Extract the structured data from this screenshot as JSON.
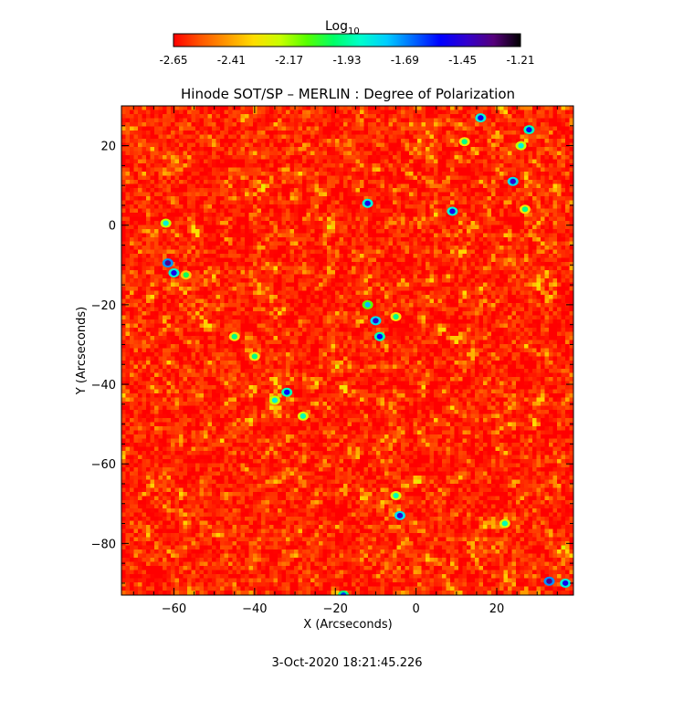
{
  "colorbar": {
    "title_base": "Log",
    "title_sub": "10",
    "ticks": [
      "-2.65",
      "-2.41",
      "-2.17",
      "-1.93",
      "-1.69",
      "-1.45",
      "-1.21"
    ],
    "range": [
      -2.65,
      -1.21
    ],
    "colors": [
      "#ff0000",
      "#ff5500",
      "#ff9900",
      "#ffdd00",
      "#c8ff00",
      "#55ff00",
      "#00ff66",
      "#00ffcc",
      "#00ccff",
      "#0066ff",
      "#0000ff",
      "#3300cc",
      "#55007a",
      "#000000"
    ]
  },
  "chart_data": {
    "type": "heatmap",
    "title": "Hinode SOT/SP – MERLIN : Degree of Polarization",
    "xlabel": "X (Arcseconds)",
    "ylabel": "Y (Arcseconds)",
    "xlim": [
      -73,
      39
    ],
    "ylim": [
      -93,
      30
    ],
    "xticks": [
      -60,
      -40,
      -20,
      0,
      20
    ],
    "yticks": [
      20,
      0,
      -20,
      -40,
      -60,
      -80
    ],
    "x_tick_labels": [
      "−60",
      "−40",
      "−20",
      "0",
      "20"
    ],
    "y_tick_labels": [
      "20",
      "0",
      "−20",
      "−40",
      "−60",
      "−80"
    ],
    "value_scale": "log10",
    "value_range": [
      -2.65,
      -1.21
    ],
    "background_level": -2.6,
    "grid": false,
    "features": [
      {
        "x": -62,
        "y": 0.5,
        "value": -1.85
      },
      {
        "x": -61.5,
        "y": -9.5,
        "value": -1.35
      },
      {
        "x": -60,
        "y": -12,
        "value": -1.5
      },
      {
        "x": -57,
        "y": -12.5,
        "value": -2.0
      },
      {
        "x": -45,
        "y": -28,
        "value": -1.95
      },
      {
        "x": -40,
        "y": -33,
        "value": -1.95
      },
      {
        "x": -35,
        "y": -44,
        "value": -1.85
      },
      {
        "x": -32,
        "y": -42,
        "value": -1.55
      },
      {
        "x": -28,
        "y": -48,
        "value": -1.9
      },
      {
        "x": -18,
        "y": -93,
        "value": -1.6
      },
      {
        "x": -12,
        "y": -20,
        "value": -1.75
      },
      {
        "x": -10,
        "y": -24,
        "value": -1.45
      },
      {
        "x": -9,
        "y": -28,
        "value": -1.55
      },
      {
        "x": -12,
        "y": 5.5,
        "value": -1.5
      },
      {
        "x": -5,
        "y": -23,
        "value": -1.95
      },
      {
        "x": -4,
        "y": -73,
        "value": -1.45
      },
      {
        "x": -5,
        "y": -68,
        "value": -1.9
      },
      {
        "x": 9,
        "y": 3.5,
        "value": -1.5
      },
      {
        "x": 12,
        "y": 21,
        "value": -1.95
      },
      {
        "x": 16,
        "y": 27,
        "value": -1.5
      },
      {
        "x": 22,
        "y": -75,
        "value": -1.9
      },
      {
        "x": 26,
        "y": 20,
        "value": -1.85
      },
      {
        "x": 24,
        "y": 11,
        "value": -1.45
      },
      {
        "x": 27,
        "y": 4,
        "value": -1.95
      },
      {
        "x": 28,
        "y": 24,
        "value": -1.55
      },
      {
        "x": 33,
        "y": -89.5,
        "value": -1.35
      },
      {
        "x": 37,
        "y": -90,
        "value": -1.5
      }
    ]
  },
  "footer": {
    "timestamp": "3-Oct-2020 18:21:45.226"
  }
}
